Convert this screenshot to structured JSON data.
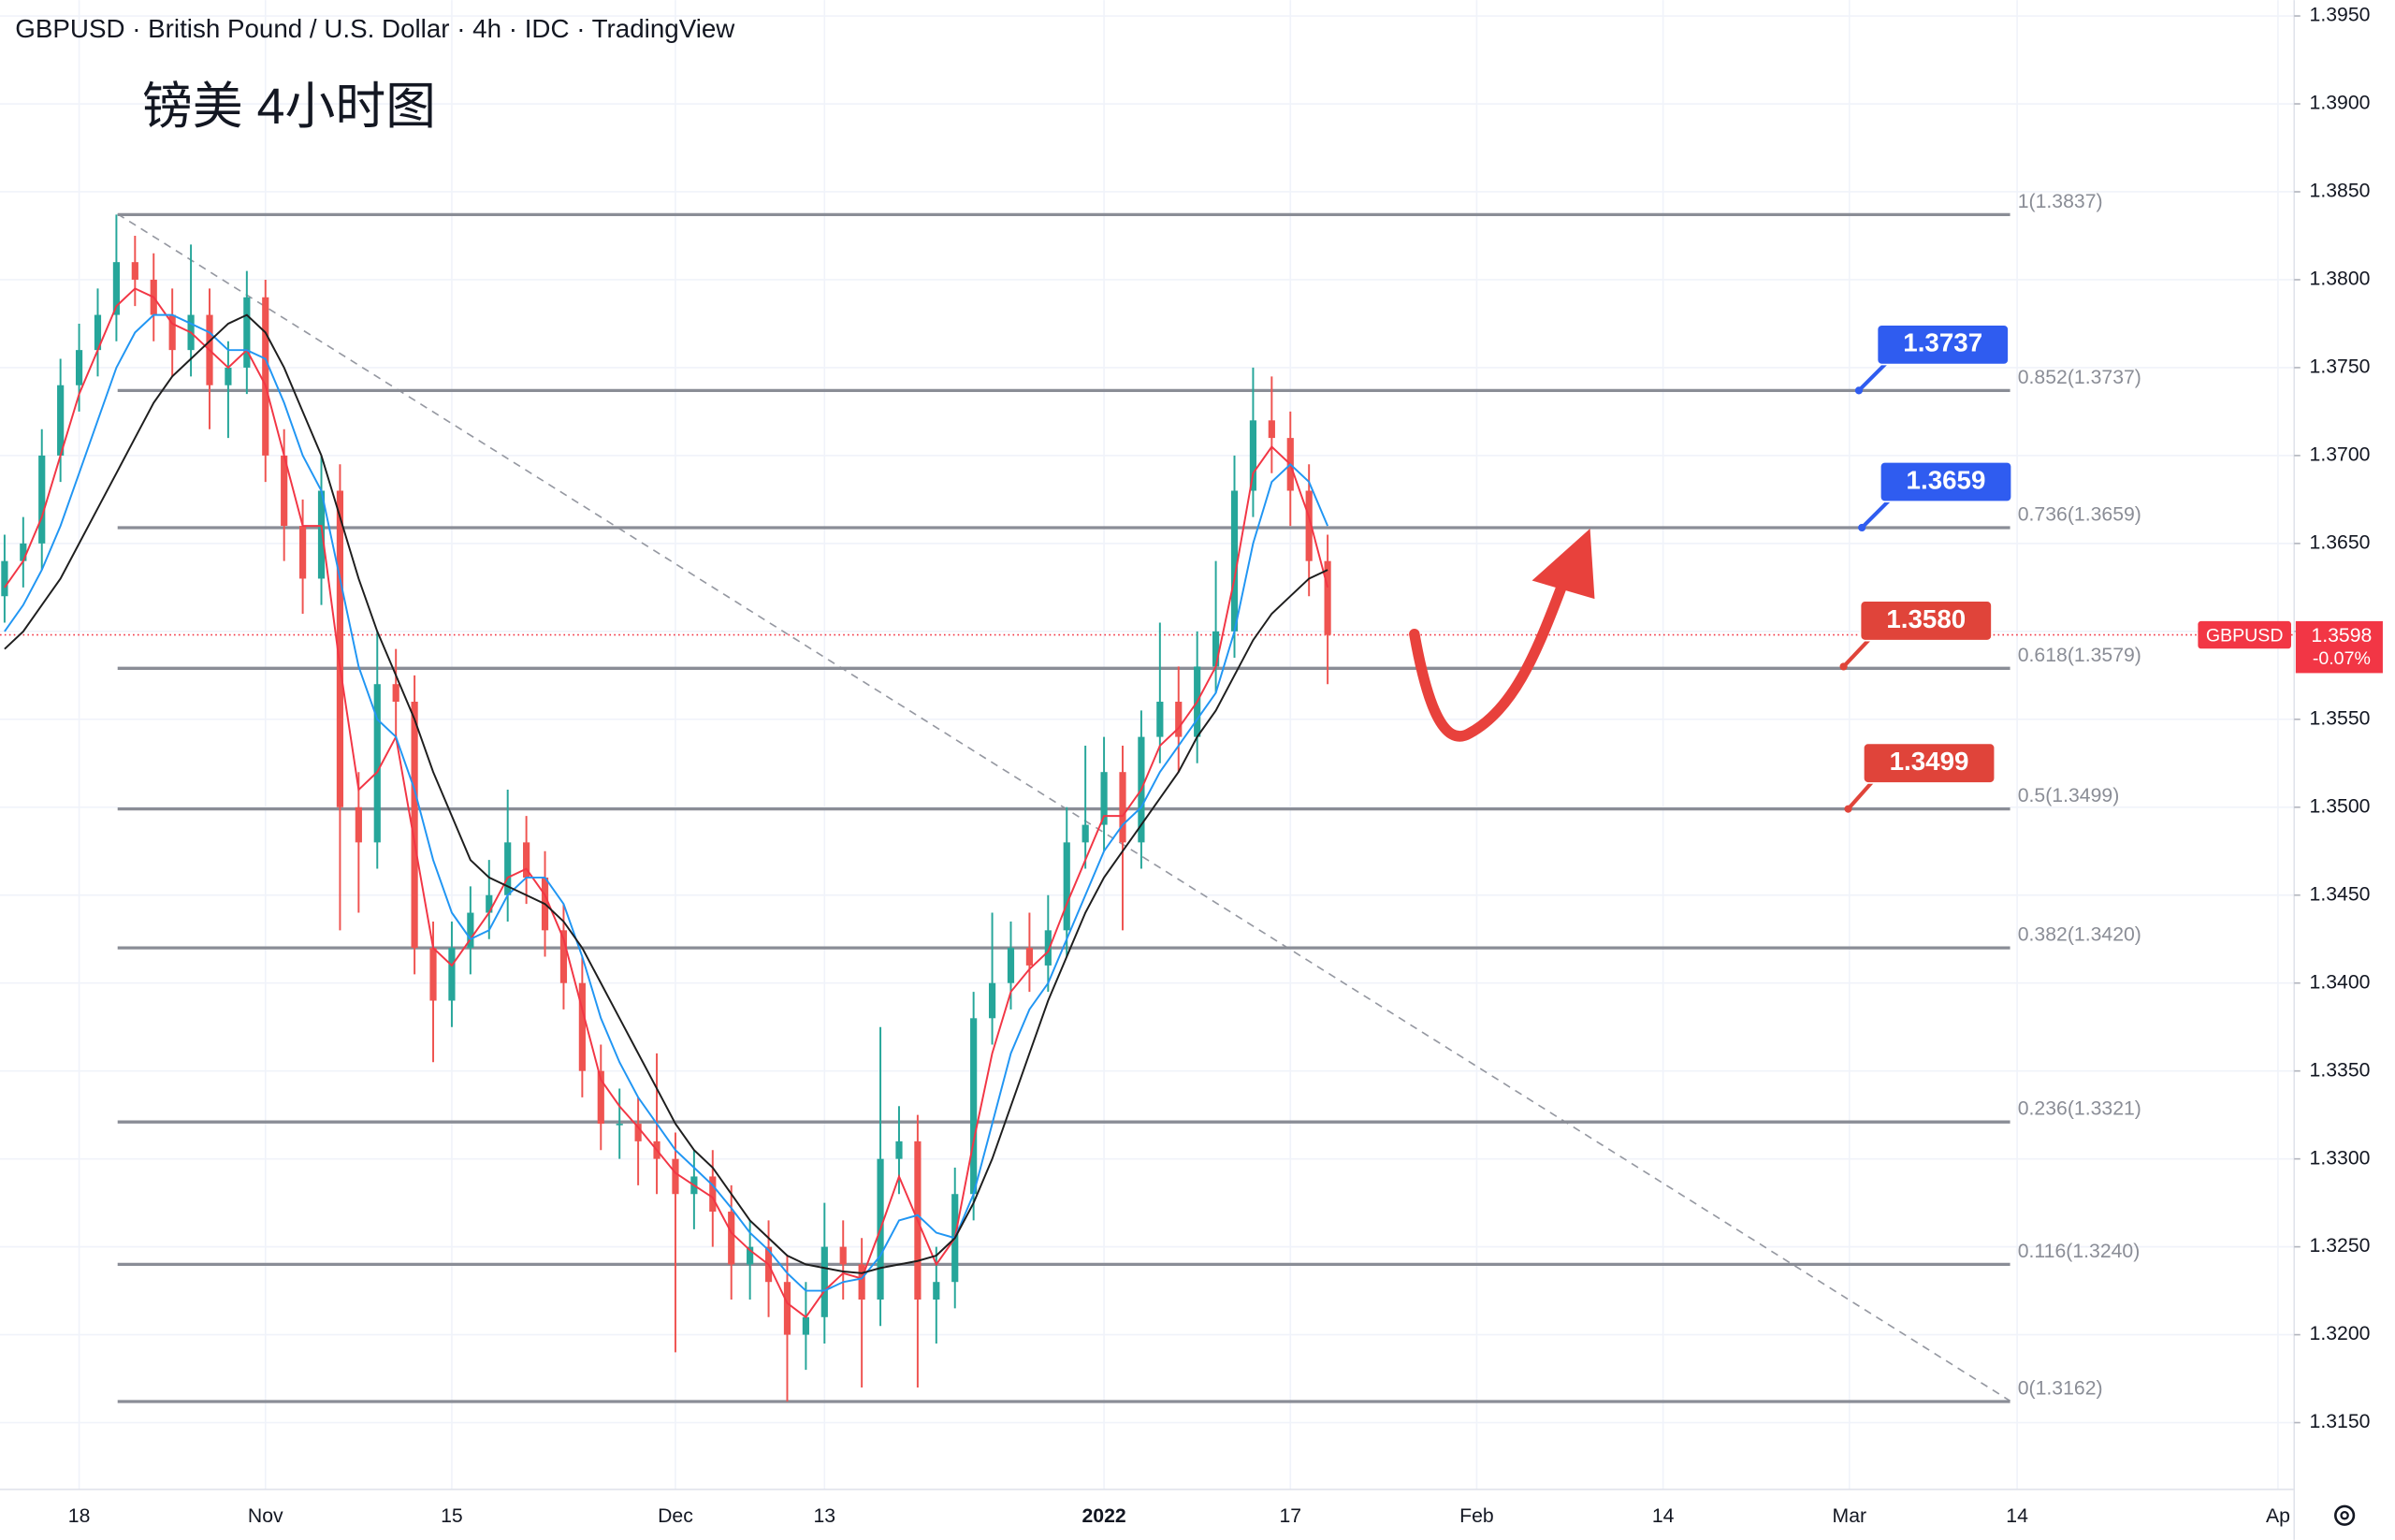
{
  "chart_data": {
    "type": "candlestick",
    "header": "GBPUSD · British Pound / U.S. Dollar · 4h · IDC · TradingView",
    "title": "镑美 4小时图",
    "categories": [
      null,
      null,
      null,
      null,
      "18",
      null,
      null,
      null,
      null,
      null,
      null,
      null,
      null,
      null,
      "Nov",
      null,
      null,
      null,
      null,
      null,
      null,
      null,
      null,
      null,
      "15",
      null,
      null,
      null,
      null,
      null,
      null,
      null,
      null,
      null,
      null,
      null,
      "Dec",
      null,
      null,
      null,
      null,
      null,
      null,
      null,
      "13",
      null,
      null,
      null,
      null,
      null,
      null,
      null,
      null,
      null,
      null,
      null,
      null,
      null,
      null,
      "2022",
      null,
      null,
      null,
      null,
      null,
      null,
      null,
      null,
      null,
      "17",
      null,
      null,
      null,
      null,
      null,
      null,
      null,
      null,
      null,
      "Feb",
      null,
      null,
      null,
      null,
      null,
      null,
      null,
      null,
      null,
      "14",
      null,
      null,
      null,
      null,
      null,
      null,
      null,
      null,
      null,
      "Mar",
      null,
      null,
      null,
      null,
      null,
      null,
      null,
      null,
      "14",
      null,
      null,
      null,
      null,
      null,
      null,
      null,
      null,
      null,
      null,
      null,
      null,
      null,
      "Ap"
    ],
    "open": [
      1.362,
      1.364,
      1.365,
      1.37,
      1.374,
      1.376,
      1.378,
      1.381,
      1.38,
      1.378,
      1.376,
      1.378,
      1.374,
      1.375,
      1.379,
      1.37,
      1.366,
      1.363,
      1.368,
      1.35,
      1.348,
      1.357,
      1.356,
      1.342,
      1.339,
      1.342,
      1.344,
      1.345,
      1.348,
      1.346,
      1.343,
      1.34,
      1.335,
      1.332,
      1.332,
      1.331,
      1.33,
      1.328,
      1.329,
      1.327,
      1.324,
      1.325,
      1.323,
      1.32,
      1.321,
      1.325,
      1.324,
      1.322,
      1.33,
      1.331,
      1.322,
      1.323,
      1.328,
      1.338,
      1.34,
      1.342,
      1.341,
      1.343,
      1.348,
      1.349,
      1.352,
      1.348,
      1.354,
      1.356,
      1.354,
      1.358,
      1.36,
      1.368,
      1.372,
      1.371,
      1.368,
      1.364,
      null,
      null,
      null,
      null,
      null,
      null,
      null,
      null,
      null,
      null,
      null,
      null,
      null,
      null,
      null,
      null,
      null,
      null,
      null,
      null,
      null,
      null,
      null,
      null,
      null,
      null,
      null,
      null,
      null,
      null,
      null,
      null,
      null,
      null,
      null,
      null,
      null,
      null,
      null,
      null,
      null,
      null,
      null,
      null,
      null,
      null,
      null,
      null,
      null,
      null,
      null
    ],
    "high": [
      1.3655,
      1.3665,
      1.3715,
      1.3755,
      1.3775,
      1.3795,
      1.3837,
      1.3825,
      1.3815,
      1.3795,
      1.382,
      1.3795,
      1.3765,
      1.3805,
      1.38,
      1.3715,
      1.3675,
      1.37,
      1.3695,
      1.352,
      1.36,
      1.359,
      1.3575,
      1.3435,
      1.3435,
      1.3455,
      1.347,
      1.351,
      1.3495,
      1.3475,
      1.3445,
      1.3415,
      1.3365,
      1.334,
      1.3335,
      1.336,
      1.3315,
      1.3305,
      1.3305,
      1.3285,
      1.3265,
      1.3265,
      1.3245,
      1.323,
      1.3275,
      1.3265,
      1.3255,
      1.3375,
      1.333,
      1.3325,
      1.325,
      1.3295,
      1.3395,
      1.344,
      1.3435,
      1.344,
      1.345,
      1.35,
      1.3535,
      1.354,
      1.3535,
      1.3555,
      1.3605,
      1.358,
      1.36,
      1.364,
      1.37,
      1.375,
      1.3745,
      1.3725,
      1.3695,
      1.3655,
      null,
      null,
      null,
      null,
      null,
      null,
      null,
      null,
      null,
      null,
      null,
      null,
      null,
      null,
      null,
      null,
      null,
      null,
      null,
      null,
      null,
      null,
      null,
      null,
      null,
      null,
      null,
      null,
      null,
      null,
      null,
      null,
      null,
      null,
      null,
      null,
      null,
      null,
      null,
      null,
      null,
      null,
      null,
      null,
      null,
      null,
      null,
      null,
      null,
      null,
      null
    ],
    "low": [
      1.3605,
      1.3625,
      1.3635,
      1.3685,
      1.3725,
      1.3745,
      1.3765,
      1.3785,
      1.3765,
      1.3745,
      1.3745,
      1.3715,
      1.371,
      1.3735,
      1.3685,
      1.364,
      1.361,
      1.3615,
      1.343,
      1.344,
      1.3465,
      1.354,
      1.3405,
      1.3355,
      1.3375,
      1.3405,
      1.3425,
      1.3435,
      1.3445,
      1.3415,
      1.3385,
      1.3335,
      1.3305,
      1.33,
      1.3285,
      1.328,
      1.319,
      1.326,
      1.325,
      1.322,
      1.322,
      1.321,
      1.3162,
      1.318,
      1.3195,
      1.322,
      1.317,
      1.3205,
      1.328,
      1.317,
      1.3195,
      1.3215,
      1.3265,
      1.3365,
      1.3385,
      1.3395,
      1.3395,
      1.3415,
      1.3465,
      1.3475,
      1.343,
      1.3465,
      1.3525,
      1.352,
      1.3525,
      1.3565,
      1.3585,
      1.3665,
      1.369,
      1.366,
      1.362,
      1.357,
      null,
      null,
      null,
      null,
      null,
      null,
      null,
      null,
      null,
      null,
      null,
      null,
      null,
      null,
      null,
      null,
      null,
      null,
      null,
      null,
      null,
      null,
      null,
      null,
      null,
      null,
      null,
      null,
      null,
      null,
      null,
      null,
      null,
      null,
      null,
      null,
      null,
      null,
      null,
      null,
      null,
      null,
      null,
      null,
      null,
      null,
      null,
      null,
      null,
      null,
      null
    ],
    "close": [
      1.364,
      1.365,
      1.37,
      1.374,
      1.376,
      1.378,
      1.381,
      1.38,
      1.378,
      1.376,
      1.378,
      1.374,
      1.375,
      1.379,
      1.37,
      1.366,
      1.363,
      1.368,
      1.35,
      1.348,
      1.357,
      1.356,
      1.342,
      1.339,
      1.342,
      1.344,
      1.345,
      1.348,
      1.346,
      1.343,
      1.34,
      1.335,
      1.332,
      1.332,
      1.331,
      1.33,
      1.328,
      1.329,
      1.327,
      1.324,
      1.325,
      1.323,
      1.32,
      1.321,
      1.325,
      1.324,
      1.322,
      1.33,
      1.331,
      1.322,
      1.323,
      1.328,
      1.338,
      1.34,
      1.342,
      1.341,
      1.343,
      1.348,
      1.349,
      1.352,
      1.348,
      1.354,
      1.356,
      1.354,
      1.358,
      1.36,
      1.368,
      1.372,
      1.371,
      1.368,
      1.364,
      1.3598,
      null,
      null,
      null,
      null,
      null,
      null,
      null,
      null,
      null,
      null,
      null,
      null,
      null,
      null,
      null,
      null,
      null,
      null,
      null,
      null,
      null,
      null,
      null,
      null,
      null,
      null,
      null,
      null,
      null,
      null,
      null,
      null,
      null,
      null,
      null,
      null,
      null,
      null,
      null,
      null,
      null,
      null,
      null,
      null,
      null,
      null,
      null,
      null,
      null,
      null,
      null
    ],
    "up_color": "#26a69a",
    "down_color": "#ef5350",
    "moving_averages": [
      {
        "color": "#f23645",
        "values": [
          1.3625,
          1.364,
          1.3665,
          1.37,
          1.3735,
          1.376,
          1.3785,
          1.3795,
          1.379,
          1.3775,
          1.377,
          1.376,
          1.375,
          1.376,
          1.374,
          1.37,
          1.366,
          1.366,
          1.358,
          1.351,
          1.352,
          1.354,
          1.348,
          1.342,
          1.341,
          1.3425,
          1.344,
          1.346,
          1.3465,
          1.345,
          1.3425,
          1.3385,
          1.3345,
          1.333,
          1.3318,
          1.3305,
          1.3292,
          1.3285,
          1.3278,
          1.3258,
          1.3248,
          1.324,
          1.3218,
          1.321,
          1.3225,
          1.3235,
          1.3232,
          1.326,
          1.329,
          1.3265,
          1.324,
          1.3255,
          1.331,
          1.336,
          1.3395,
          1.3408,
          1.3418,
          1.3445,
          1.347,
          1.3495,
          1.3495,
          1.351,
          1.3535,
          1.3545,
          1.356,
          1.358,
          1.363,
          1.369,
          1.3705,
          1.3695,
          1.3665,
          1.3625,
          null,
          null,
          null,
          null,
          null,
          null,
          null,
          null,
          null,
          null,
          null,
          null,
          null,
          null,
          null,
          null,
          null,
          null,
          null,
          null,
          null,
          null,
          null,
          null,
          null,
          null,
          null,
          null,
          null,
          null,
          null,
          null,
          null,
          null,
          null,
          null,
          null,
          null,
          null,
          null,
          null,
          null,
          null,
          null,
          null,
          null,
          null,
          null,
          null,
          null,
          null
        ]
      },
      {
        "color": "#2196f3",
        "values": [
          1.36,
          1.3615,
          1.3635,
          1.366,
          1.369,
          1.372,
          1.375,
          1.377,
          1.378,
          1.378,
          1.3775,
          1.377,
          1.376,
          1.376,
          1.3755,
          1.373,
          1.37,
          1.368,
          1.363,
          1.358,
          1.355,
          1.354,
          1.351,
          1.347,
          1.344,
          1.3425,
          1.343,
          1.345,
          1.346,
          1.346,
          1.3445,
          1.3415,
          1.338,
          1.3355,
          1.3335,
          1.332,
          1.3305,
          1.3295,
          1.3285,
          1.3272,
          1.3258,
          1.3248,
          1.3235,
          1.3225,
          1.3225,
          1.323,
          1.3232,
          1.3245,
          1.3265,
          1.3268,
          1.3258,
          1.3255,
          1.328,
          1.332,
          1.336,
          1.3385,
          1.34,
          1.3425,
          1.345,
          1.3475,
          1.349,
          1.35,
          1.352,
          1.3535,
          1.355,
          1.3565,
          1.36,
          1.365,
          1.3685,
          1.3695,
          1.3685,
          1.366,
          null,
          null,
          null,
          null,
          null,
          null,
          null,
          null,
          null,
          null,
          null,
          null,
          null,
          null,
          null,
          null,
          null,
          null,
          null,
          null,
          null,
          null,
          null,
          null,
          null,
          null,
          null,
          null,
          null,
          null,
          null,
          null,
          null,
          null,
          null,
          null,
          null,
          null,
          null,
          null,
          null,
          null,
          null,
          null,
          null,
          null,
          null,
          null,
          null,
          null,
          null
        ]
      },
      {
        "color": "#1e1e1e",
        "values": [
          1.359,
          1.36,
          1.3615,
          1.363,
          1.365,
          1.367,
          1.369,
          1.371,
          1.373,
          1.3745,
          1.3755,
          1.3765,
          1.3775,
          1.378,
          1.377,
          1.375,
          1.3725,
          1.37,
          1.3665,
          1.363,
          1.36,
          1.3575,
          1.355,
          1.352,
          1.3495,
          1.347,
          1.346,
          1.3455,
          1.345,
          1.3445,
          1.3435,
          1.342,
          1.34,
          1.338,
          1.336,
          1.334,
          1.332,
          1.3305,
          1.3295,
          1.328,
          1.3265,
          1.3255,
          1.3245,
          1.324,
          1.3238,
          1.3236,
          1.3235,
          1.3238,
          1.324,
          1.3242,
          1.3245,
          1.3255,
          1.3275,
          1.33,
          1.333,
          1.336,
          1.339,
          1.3415,
          1.344,
          1.346,
          1.3475,
          1.349,
          1.3505,
          1.352,
          1.354,
          1.3555,
          1.3575,
          1.3595,
          1.361,
          1.362,
          1.363,
          1.3635,
          null,
          null,
          null,
          null,
          null,
          null,
          null,
          null,
          null,
          null,
          null,
          null,
          null,
          null,
          null,
          null,
          null,
          null,
          null,
          null,
          null,
          null,
          null,
          null,
          null,
          null,
          null,
          null,
          null,
          null,
          null,
          null,
          null,
          null,
          null,
          null,
          null,
          null,
          null,
          null,
          null,
          null,
          null,
          null,
          null,
          null,
          null,
          null,
          null,
          null,
          null
        ]
      }
    ],
    "ylim": [
      1.3112,
      1.3959
    ],
    "yticks": [
      {
        "value": 1.315,
        "label": "1.3150"
      },
      {
        "value": 1.32,
        "label": "1.3200"
      },
      {
        "value": 1.325,
        "label": "1.3250"
      },
      {
        "value": 1.33,
        "label": "1.3300"
      },
      {
        "value": 1.335,
        "label": "1.3350"
      },
      {
        "value": 1.34,
        "label": "1.3400"
      },
      {
        "value": 1.345,
        "label": "1.3450"
      },
      {
        "value": 1.35,
        "label": "1.3500"
      },
      {
        "value": 1.355,
        "label": "1.3550"
      },
      {
        "value": 1.36,
        "label": "1.3600"
      },
      {
        "value": 1.365,
        "label": "1.3650"
      },
      {
        "value": 1.37,
        "label": "1.3700"
      },
      {
        "value": 1.375,
        "label": "1.3750"
      },
      {
        "value": 1.38,
        "label": "1.3800"
      },
      {
        "value": 1.385,
        "label": "1.3850"
      },
      {
        "value": 1.39,
        "label": "1.3900"
      },
      {
        "value": 1.395,
        "label": "1.3950"
      }
    ],
    "grid": true,
    "fib_levels": [
      {
        "value": 1.3837,
        "label": "1(1.3837)"
      },
      {
        "value": 1.3737,
        "label": "0.852(1.3737)"
      },
      {
        "value": 1.3659,
        "label": "0.736(1.3659)"
      },
      {
        "value": 1.3579,
        "label": "0.618(1.3579)"
      },
      {
        "value": 1.3499,
        "label": "0.5(1.3499)"
      },
      {
        "value": 1.342,
        "label": "0.382(1.3420)"
      },
      {
        "value": 1.3321,
        "label": "0.236(1.3321)"
      },
      {
        "value": 1.324,
        "label": "0.116(1.3240)"
      },
      {
        "value": 1.3162,
        "label": "0(1.3162)"
      }
    ],
    "fib_color": "#8a8d96",
    "callouts": [
      {
        "value": 1.3737,
        "label": "1.3737",
        "color": "#2f5cf0"
      },
      {
        "value": 1.3659,
        "label": "1.3659",
        "color": "#2f5cf0"
      },
      {
        "value": 1.358,
        "label": "1.3580",
        "color": "#e0443a"
      },
      {
        "value": 1.3499,
        "label": "1.3499",
        "color": "#e0443a"
      }
    ],
    "last_price": {
      "value": 1.3598,
      "label": "1.3598",
      "change": "-0.07%",
      "symbol": "GBPUSD",
      "color": "#f23645"
    }
  }
}
